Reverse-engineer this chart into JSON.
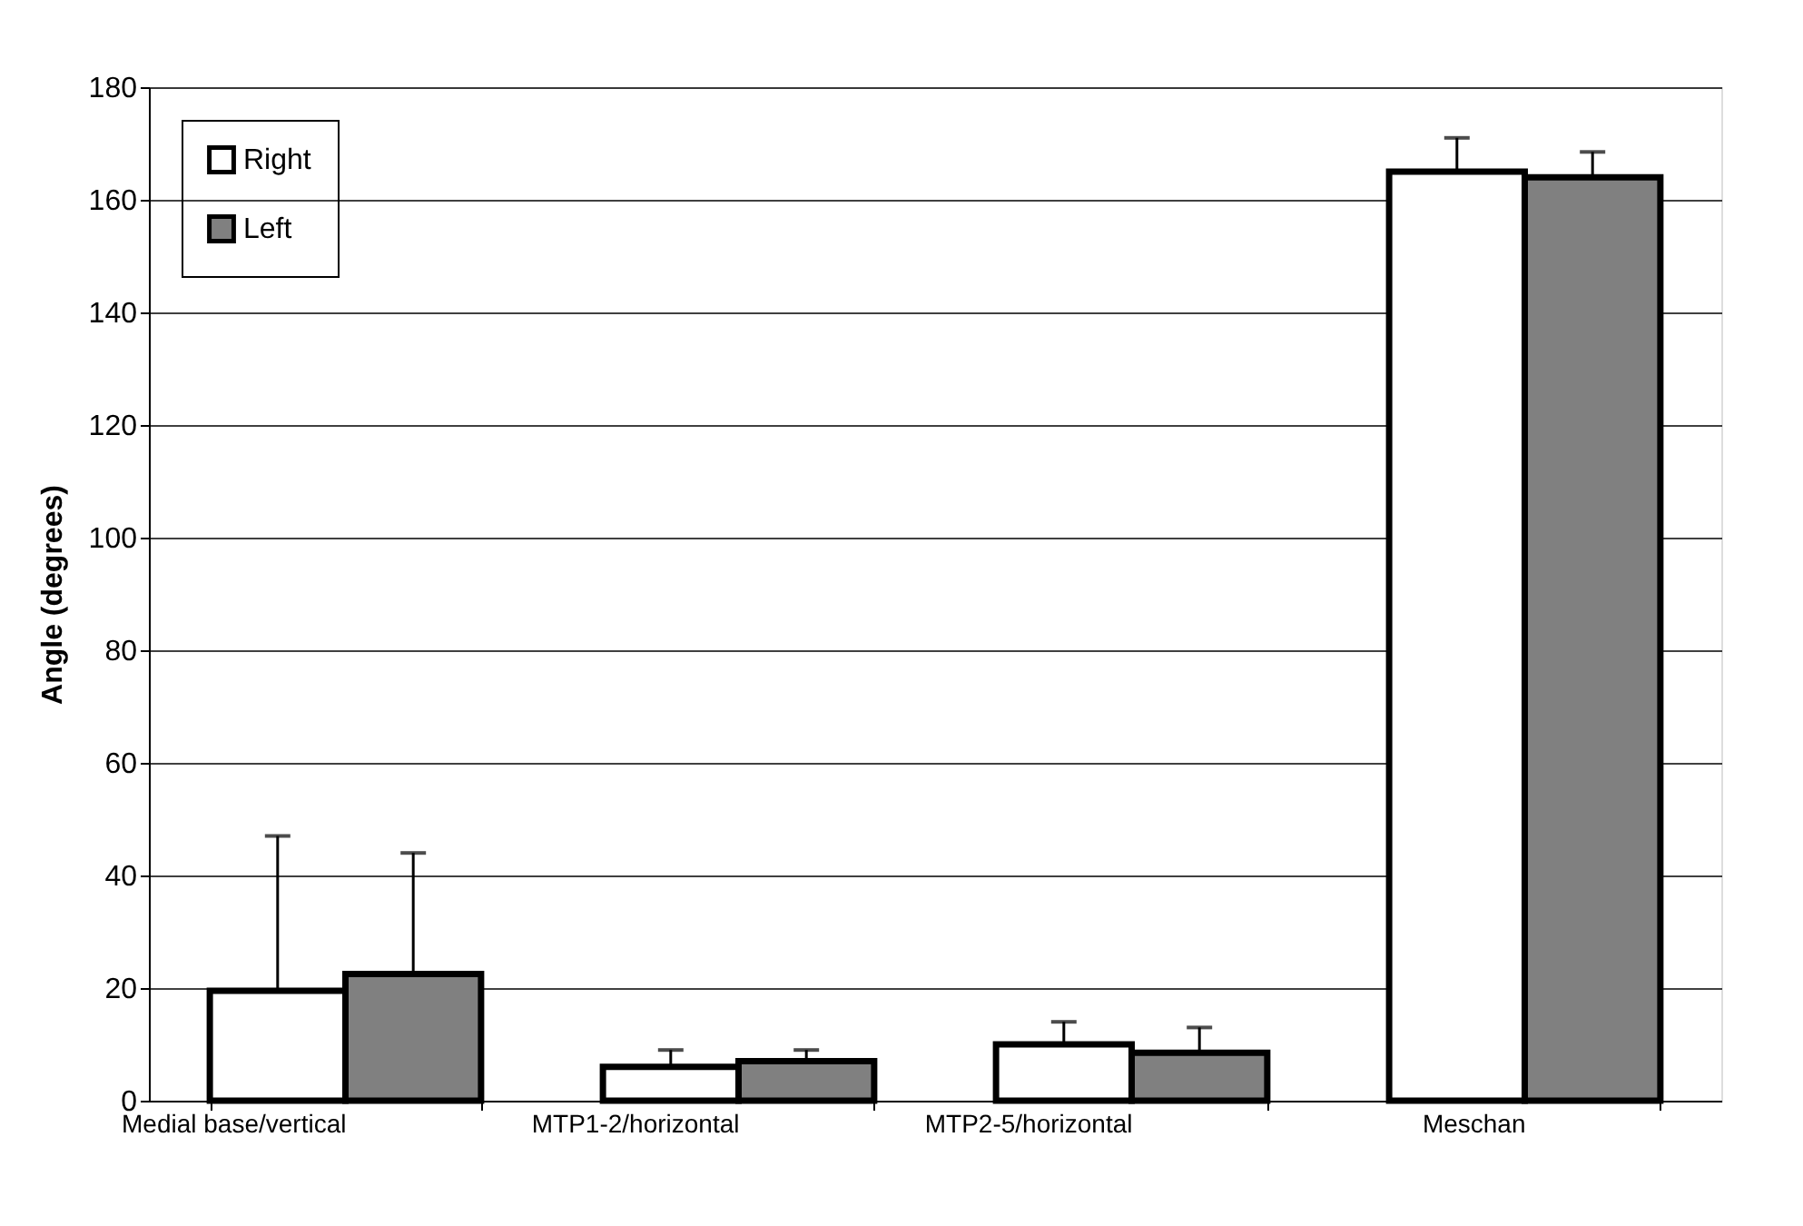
{
  "chart_data": {
    "type": "bar",
    "ylabel": "Angle (degrees)",
    "categories": [
      "Medial base/vertical",
      "MTP1-2/horizontal",
      "MTP2-5/horizontal",
      "Meschan"
    ],
    "series": [
      {
        "name": "Right",
        "color": "#ffffff",
        "values": [
          19.5,
          6,
          10,
          165
        ],
        "errors": [
          [
            19.5,
            47
          ],
          [
            6,
            9
          ],
          [
            10,
            14
          ],
          [
            165,
            171
          ]
        ]
      },
      {
        "name": "Left",
        "color": "#808080",
        "values": [
          22.5,
          7,
          8.5,
          164
        ],
        "errors": [
          [
            22.5,
            44
          ],
          [
            7,
            9
          ],
          [
            8.5,
            13
          ],
          [
            164,
            168.5
          ]
        ]
      }
    ],
    "ylim": [
      0,
      180
    ],
    "yticks": [
      0,
      20,
      40,
      60,
      80,
      100,
      120,
      140,
      160,
      180
    ],
    "grid": "y",
    "legend": "top left"
  }
}
